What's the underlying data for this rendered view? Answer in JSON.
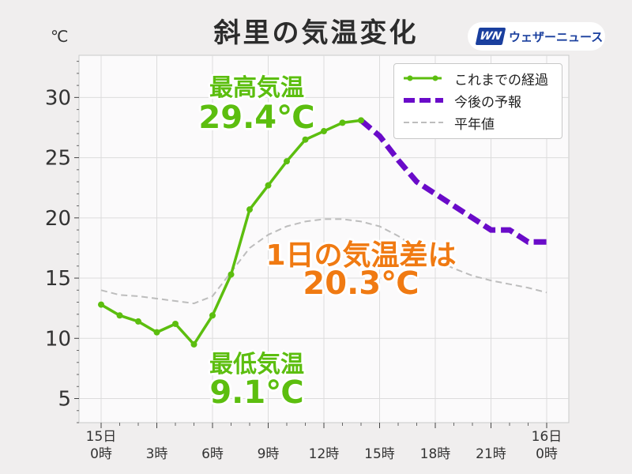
{
  "header": {
    "title": "斜里の気温変化",
    "unit": "℃",
    "logo_mark": "WN",
    "logo_text": "ウェザーニュース"
  },
  "legend": {
    "observed": "これまでの経過",
    "forecast": "今後の予報",
    "normal": "平年値"
  },
  "annotations": {
    "max_label": "最高気温",
    "max_value": "29.4℃",
    "min_label": "最低気温",
    "min_value": "9.1℃",
    "diff_label": "1日の気温差は",
    "diff_value": "20.3℃"
  },
  "colors": {
    "observed": "#5cbe0f",
    "forecast": "#6a0bc9",
    "normal": "#bdbdbd",
    "annotation_green": "#5cbe0f",
    "annotation_orange": "#f07a12"
  },
  "chart_data": {
    "type": "line",
    "xlim": [
      0,
      24
    ],
    "ylim": [
      3,
      33.5
    ],
    "y_ticks": [
      5,
      10,
      15,
      20,
      25,
      30
    ],
    "x_ticks": [
      {
        "x": 0,
        "label": [
          "15日",
          "0時"
        ]
      },
      {
        "x": 3,
        "label": [
          "3時"
        ]
      },
      {
        "x": 6,
        "label": [
          "6時"
        ]
      },
      {
        "x": 9,
        "label": [
          "9時"
        ]
      },
      {
        "x": 12,
        "label": [
          "12時"
        ]
      },
      {
        "x": 15,
        "label": [
          "15時"
        ]
      },
      {
        "x": 18,
        "label": [
          "18時"
        ]
      },
      {
        "x": 21,
        "label": [
          "21時"
        ]
      },
      {
        "x": 24,
        "label": [
          "16日",
          "0時"
        ]
      }
    ],
    "grid": true,
    "legend_position": "top-right",
    "series": [
      {
        "name": "これまでの経過",
        "style": "solid-markers",
        "x": [
          0,
          1,
          2,
          3,
          4,
          5,
          6,
          7,
          8,
          9,
          10,
          11,
          12,
          13,
          14
        ],
        "y": [
          12.8,
          11.9,
          11.4,
          10.5,
          11.2,
          9.5,
          11.9,
          15.3,
          20.7,
          22.7,
          24.7,
          26.5,
          27.2,
          27.9,
          28.1
        ]
      },
      {
        "name": "今後の予報",
        "style": "dashed-thick",
        "x": [
          14,
          15,
          16,
          17,
          18,
          19,
          20,
          21,
          22,
          23,
          24
        ],
        "y": [
          28.1,
          26.8,
          24.8,
          23.0,
          22.0,
          21.0,
          20.0,
          19.0,
          19.0,
          18.0,
          18.0
        ]
      },
      {
        "name": "平年値",
        "style": "dashed-thin",
        "x": [
          0,
          1,
          2,
          3,
          4,
          5,
          6,
          7,
          8,
          9,
          10,
          11,
          12,
          13,
          14,
          15,
          16,
          17,
          18,
          19,
          20,
          21,
          22,
          23,
          24
        ],
        "y": [
          14.0,
          13.6,
          13.5,
          13.3,
          13.1,
          12.9,
          13.5,
          15.5,
          17.5,
          18.6,
          19.3,
          19.7,
          19.9,
          19.9,
          19.7,
          19.3,
          18.5,
          17.5,
          16.5,
          15.8,
          15.2,
          14.8,
          14.5,
          14.2,
          13.8
        ]
      }
    ]
  }
}
